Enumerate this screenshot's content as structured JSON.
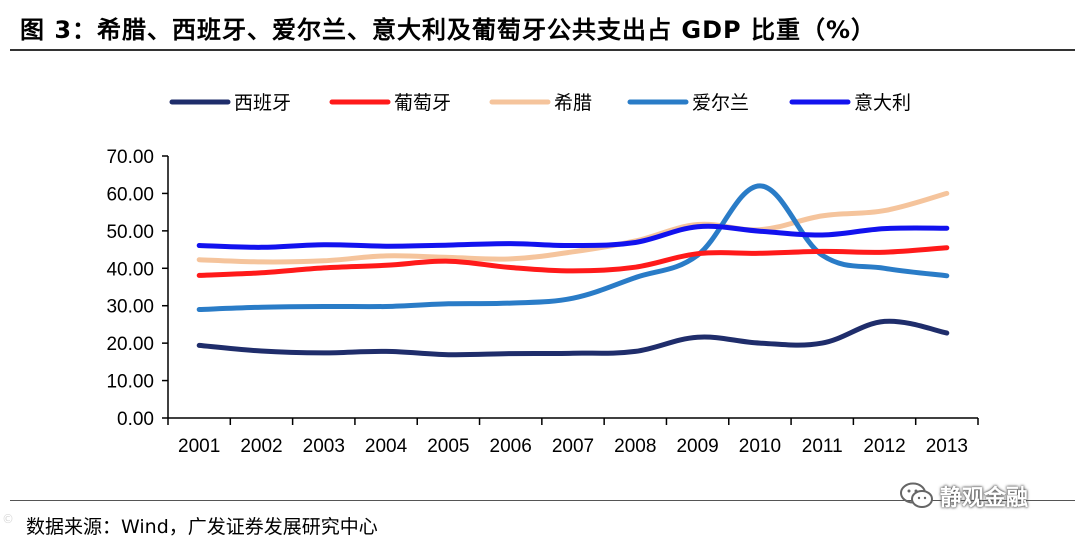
{
  "figure": {
    "title": "图 3：希腊、西班牙、爱尔兰、意大利及葡萄牙公共支出占 GDP 比重（%）",
    "source": "数据来源：Wind，广发证券发展研究中心",
    "watermark": "静观金融"
  },
  "chart_data": {
    "type": "line",
    "title": "希腊、西班牙、爱尔兰、意大利及葡萄牙公共支出占 GDP 比重（%）",
    "xlabel": "",
    "ylabel": "",
    "ylim": [
      0,
      70
    ],
    "y_ticks": [
      "0.00",
      "10.00",
      "20.00",
      "30.00",
      "40.00",
      "50.00",
      "60.00",
      "70.00"
    ],
    "categories": [
      "2001",
      "2002",
      "2003",
      "2004",
      "2005",
      "2006",
      "2007",
      "2008",
      "2009",
      "2010",
      "2011",
      "2012",
      "2013"
    ],
    "legend_position": "top",
    "grid": false,
    "series": [
      {
        "name": "西班牙",
        "color": "#1f2d6b",
        "values": [
          19.4,
          17.9,
          17.4,
          17.8,
          16.9,
          17.2,
          17.3,
          17.8,
          21.6,
          20.0,
          20.0,
          25.8,
          22.7
        ]
      },
      {
        "name": "葡萄牙",
        "color": "#ff1a1a",
        "values": [
          38.1,
          38.8,
          40.1,
          40.8,
          41.9,
          40.2,
          39.3,
          40.3,
          43.9,
          44.0,
          44.5,
          44.3,
          45.5
        ]
      },
      {
        "name": "希腊",
        "color": "#f5c49c",
        "values": [
          42.3,
          41.7,
          42.0,
          43.3,
          42.9,
          42.5,
          44.4,
          47.3,
          51.7,
          50.3,
          54.0,
          55.4,
          60.0
        ]
      },
      {
        "name": "爱尔兰",
        "color": "#2a7cc7",
        "values": [
          29.0,
          29.6,
          29.8,
          29.8,
          30.5,
          30.7,
          32.0,
          37.5,
          43.5,
          62.0,
          43.5,
          40.0,
          38.0
        ]
      },
      {
        "name": "意大利",
        "color": "#1212ee",
        "values": [
          46.1,
          45.6,
          46.3,
          45.9,
          46.2,
          46.6,
          46.1,
          46.9,
          51.1,
          49.9,
          48.9,
          50.6,
          50.7
        ]
      }
    ]
  }
}
